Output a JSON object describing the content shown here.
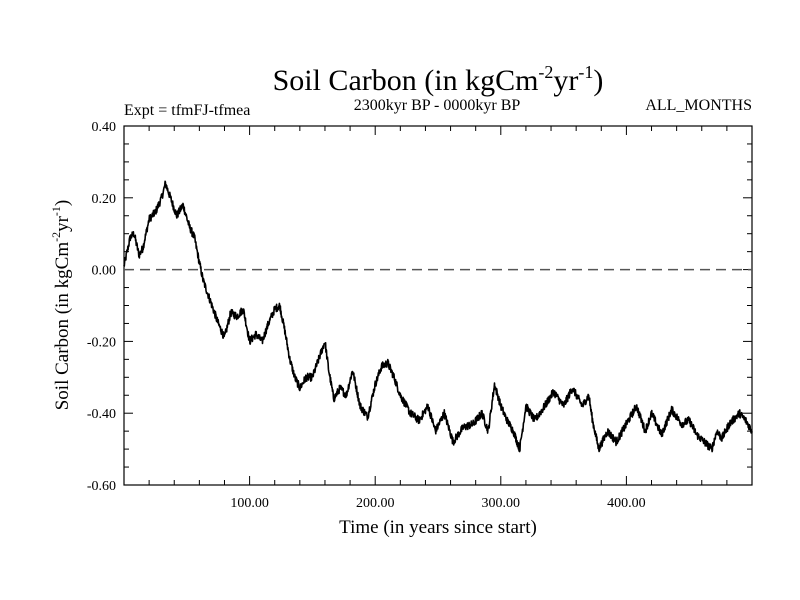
{
  "chart_data": {
    "type": "line",
    "title": "Soil Carbon (in kgCm",
    "title_sup1": "-2",
    "title_mid": "yr",
    "title_sup2": "-1",
    "title_end": ")",
    "subtitle_left": "Expt = tfmFJ-tfmea",
    "subtitle_center": "2300kyr BP - 0000kyr BP",
    "subtitle_right": "ALL_MONTHS",
    "xlabel": "Time (in years since start)",
    "ylabel": "Soil Carbon (in kgCm",
    "ylabel_sup1": "-2",
    "ylabel_mid": "yr",
    "ylabel_sup2": "-1",
    "ylabel_end": ")",
    "xlim": [
      0,
      500
    ],
    "ylim": [
      -0.6,
      0.4
    ],
    "x_ticks": [
      100,
      200,
      300,
      400
    ],
    "x_tick_labels": [
      "100.00",
      "200.00",
      "300.00",
      "400.00"
    ],
    "y_ticks": [
      0.4,
      0.2,
      0.0,
      -0.2,
      -0.4,
      -0.6
    ],
    "y_tick_labels": [
      "0.40",
      "0.20",
      "0.00",
      "-0.20",
      "-0.40",
      "-0.60"
    ],
    "reference_line": {
      "y": 0.0,
      "style": "dashed"
    },
    "series": [
      {
        "name": "Soil Carbon",
        "x": [
          0,
          5,
          8,
          12,
          15,
          20,
          25,
          30,
          33,
          37,
          42,
          47,
          52,
          56,
          60,
          63,
          66,
          70,
          75,
          80,
          85,
          90,
          95,
          100,
          105,
          110,
          115,
          120,
          124,
          128,
          132,
          136,
          140,
          145,
          150,
          155,
          160,
          163,
          167,
          172,
          177,
          182,
          188,
          194,
          200,
          205,
          210,
          215,
          220,
          228,
          235,
          242,
          248,
          255,
          262,
          270,
          278,
          285,
          290,
          295,
          300,
          305,
          310,
          315,
          320,
          327,
          335,
          342,
          350,
          357,
          365,
          370,
          373,
          378,
          385,
          392,
          400,
          408,
          415,
          420,
          428,
          436,
          444,
          450,
          456,
          462,
          468,
          472,
          476,
          482,
          490,
          495,
          500
        ],
        "y": [
          0.01,
          0.09,
          0.1,
          0.04,
          0.06,
          0.14,
          0.16,
          0.2,
          0.24,
          0.2,
          0.15,
          0.18,
          0.12,
          0.09,
          0.02,
          -0.03,
          -0.06,
          -0.1,
          -0.15,
          -0.19,
          -0.12,
          -0.13,
          -0.11,
          -0.2,
          -0.18,
          -0.2,
          -0.15,
          -0.11,
          -0.1,
          -0.17,
          -0.25,
          -0.3,
          -0.33,
          -0.3,
          -0.3,
          -0.25,
          -0.2,
          -0.28,
          -0.36,
          -0.33,
          -0.35,
          -0.28,
          -0.38,
          -0.41,
          -0.32,
          -0.27,
          -0.26,
          -0.3,
          -0.35,
          -0.4,
          -0.42,
          -0.38,
          -0.45,
          -0.4,
          -0.48,
          -0.44,
          -0.43,
          -0.4,
          -0.45,
          -0.32,
          -0.38,
          -0.42,
          -0.45,
          -0.5,
          -0.38,
          -0.42,
          -0.38,
          -0.34,
          -0.38,
          -0.33,
          -0.38,
          -0.35,
          -0.42,
          -0.5,
          -0.45,
          -0.48,
          -0.43,
          -0.38,
          -0.45,
          -0.4,
          -0.46,
          -0.39,
          -0.43,
          -0.42,
          -0.46,
          -0.48,
          -0.5,
          -0.45,
          -0.47,
          -0.43,
          -0.4,
          -0.42,
          -0.45
        ]
      }
    ]
  }
}
